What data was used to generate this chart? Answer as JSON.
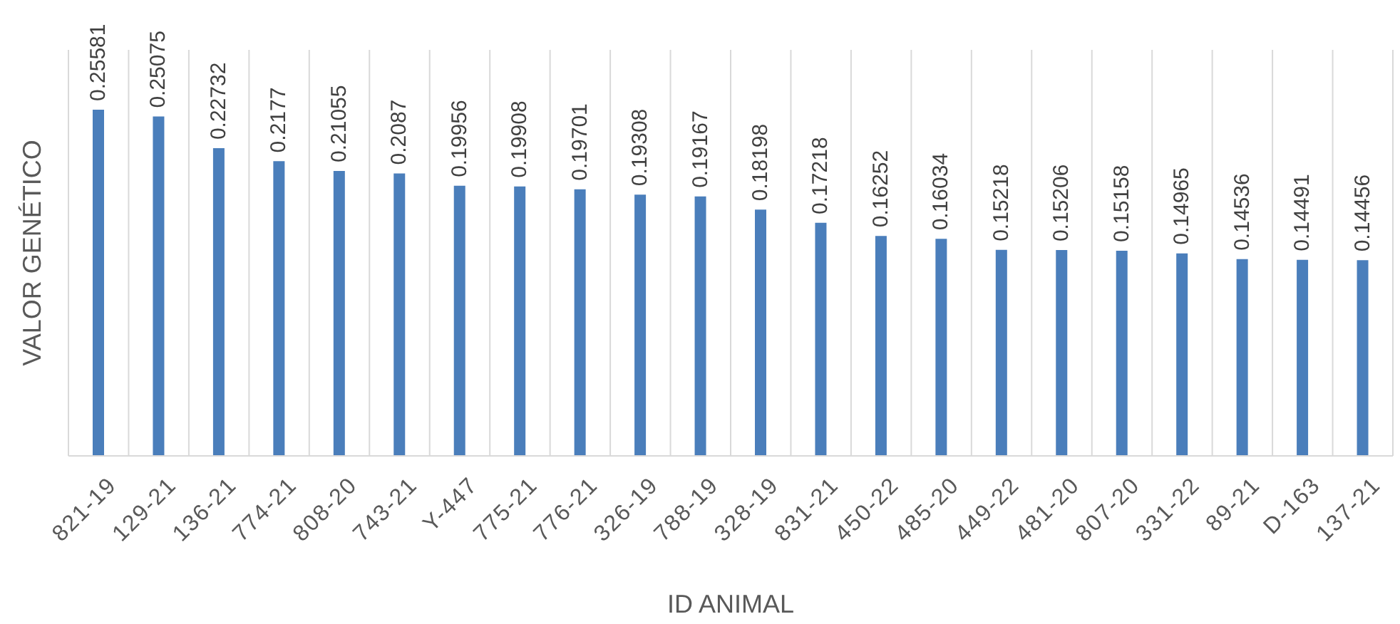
{
  "chart_data": {
    "type": "bar",
    "xlabel": "ID ANIMAL",
    "ylabel": "VALOR GENÉTICO",
    "categories": [
      "821-19",
      "129-21",
      "136-21",
      "774-21",
      "808-20",
      "743-21",
      "Y-447",
      "775-21",
      "776-21",
      "326-19",
      "788-19",
      "328-19",
      "831-21",
      "450-22",
      "485-20",
      "449-22",
      "481-20",
      "807-20",
      "331-22",
      "89-21",
      "D-163",
      "137-21"
    ],
    "values": [
      0.25581,
      0.25075,
      0.22732,
      0.2177,
      0.21055,
      0.2087,
      0.19956,
      0.19908,
      0.19701,
      0.19308,
      0.19167,
      0.18198,
      0.17218,
      0.16252,
      0.16034,
      0.15218,
      0.15206,
      0.15158,
      0.14965,
      0.14536,
      0.14491,
      0.14456
    ],
    "color": "#4a7ebb",
    "ylim": [
      0,
      0.3
    ],
    "data_labels": true,
    "grid": "x",
    "tick_labels": "x"
  }
}
